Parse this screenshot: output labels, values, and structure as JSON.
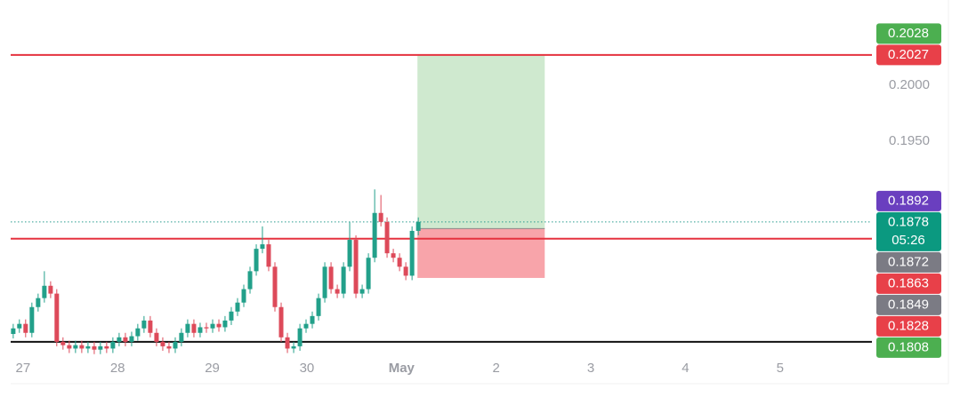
{
  "chart_data": {
    "type": "candlestick",
    "x": [
      -0.103,
      -0.038,
      0.028,
      0.094,
      0.16,
      0.226,
      0.292,
      0.357,
      0.423,
      0.489,
      0.555,
      0.621,
      0.687,
      0.753,
      0.818,
      0.884,
      0.95,
      1.016,
      1.082,
      1.148,
      1.213,
      1.279,
      1.345,
      1.411,
      1.477,
      1.543,
      1.609,
      1.674,
      1.74,
      1.806,
      1.872,
      1.938,
      2.004,
      2.07,
      2.135,
      2.201,
      2.267,
      2.333,
      2.399,
      2.465,
      2.53,
      2.596,
      2.662,
      2.728,
      2.794,
      2.86,
      2.926,
      2.991,
      3.057,
      3.123,
      3.189,
      3.255,
      3.321,
      3.387,
      3.452,
      3.518,
      3.584,
      3.65,
      3.716,
      3.782,
      3.847,
      3.913,
      3.979,
      4.045,
      4.111,
      4.177
    ],
    "open": [
      0.1778,
      0.1783,
      0.1787,
      0.1779,
      0.1802,
      0.181,
      0.1821,
      0.1814,
      0.1771,
      0.1768,
      0.1765,
      0.1768,
      0.1765,
      0.1767,
      0.1764,
      0.1767,
      0.1765,
      0.1771,
      0.1775,
      0.1771,
      0.1776,
      0.1783,
      0.179,
      0.1779,
      0.1771,
      0.1767,
      0.1765,
      0.1771,
      0.1779,
      0.1787,
      0.1779,
      0.1784,
      0.1783,
      0.1787,
      0.1784,
      0.179,
      0.1798,
      0.1806,
      0.1818,
      0.1834,
      0.1854,
      0.1858,
      0.1838,
      0.1802,
      0.1775,
      0.1765,
      0.1767,
      0.1783,
      0.1787,
      0.1794,
      0.181,
      0.1838,
      0.1818,
      0.1814,
      0.1838,
      0.1862,
      0.1814,
      0.1818,
      0.1846,
      0.1886,
      0.1878,
      0.185,
      0.1846,
      0.1838,
      0.183,
      0.187
    ],
    "high": [
      0.1787,
      0.1791,
      0.1791,
      0.1806,
      0.1814,
      0.1834,
      0.1825,
      0.1818,
      0.1775,
      0.1772,
      0.1772,
      0.1772,
      0.1771,
      0.1771,
      0.1771,
      0.1771,
      0.1775,
      0.1779,
      0.1779,
      0.178,
      0.1787,
      0.1794,
      0.1794,
      0.1783,
      0.1775,
      0.1771,
      0.1775,
      0.1783,
      0.1791,
      0.1791,
      0.1788,
      0.1788,
      0.1791,
      0.1791,
      0.1794,
      0.1802,
      0.181,
      0.1822,
      0.1838,
      0.1858,
      0.1874,
      0.1862,
      0.1842,
      0.1806,
      0.1779,
      0.1771,
      0.1787,
      0.1791,
      0.1798,
      0.1814,
      0.1842,
      0.1842,
      0.1822,
      0.1842,
      0.1878,
      0.1866,
      0.1822,
      0.185,
      0.1907,
      0.1902,
      0.1882,
      0.1854,
      0.185,
      0.1842,
      0.1874,
      0.1882
    ],
    "low": [
      0.1774,
      0.1779,
      0.1775,
      0.1775,
      0.1798,
      0.1806,
      0.181,
      0.1767,
      0.1764,
      0.1761,
      0.1761,
      0.1761,
      0.1761,
      0.176,
      0.176,
      0.1761,
      0.1761,
      0.1767,
      0.1767,
      0.1767,
      0.1772,
      0.1779,
      0.1775,
      0.1767,
      0.1763,
      0.1761,
      0.1761,
      0.1767,
      0.1775,
      0.1775,
      0.1775,
      0.1779,
      0.1779,
      0.178,
      0.178,
      0.1786,
      0.1794,
      0.1802,
      0.1814,
      0.183,
      0.185,
      0.1834,
      0.1798,
      0.1771,
      0.1761,
      0.1761,
      0.1763,
      0.1779,
      0.1783,
      0.179,
      0.1806,
      0.1814,
      0.181,
      0.181,
      0.1834,
      0.181,
      0.181,
      0.1814,
      0.1842,
      0.1874,
      0.1846,
      0.1842,
      0.1834,
      0.1826,
      0.1826,
      0.1866
    ],
    "close": [
      0.1783,
      0.1787,
      0.1779,
      0.1802,
      0.181,
      0.1821,
      0.1814,
      0.1771,
      0.1768,
      0.1765,
      0.1768,
      0.1765,
      0.1767,
      0.1764,
      0.1767,
      0.1765,
      0.1771,
      0.1775,
      0.1771,
      0.1776,
      0.1783,
      0.179,
      0.1779,
      0.1771,
      0.1767,
      0.1765,
      0.1771,
      0.1779,
      0.1787,
      0.1779,
      0.1784,
      0.1783,
      0.1787,
      0.1784,
      0.179,
      0.1798,
      0.1806,
      0.1818,
      0.1834,
      0.1854,
      0.1858,
      0.1838,
      0.1802,
      0.1775,
      0.1765,
      0.1767,
      0.1783,
      0.1787,
      0.1794,
      0.181,
      0.1838,
      0.1818,
      0.1814,
      0.1838,
      0.1862,
      0.1814,
      0.1818,
      0.1846,
      0.1886,
      0.1878,
      0.185,
      0.1846,
      0.1838,
      0.183,
      0.187,
      0.1878
    ],
    "up_color": "#22a08a",
    "down_color": "#dd4a5a",
    "xlim": [
      -0.13,
      8.97
    ],
    "ylim": [
      0.1759,
      0.2076
    ],
    "xticks": [
      {
        "value": 0,
        "label": "27"
      },
      {
        "value": 1,
        "label": "28"
      },
      {
        "value": 2,
        "label": "29"
      },
      {
        "value": 3,
        "label": "30"
      },
      {
        "value": 4,
        "label": "May"
      },
      {
        "value": 5,
        "label": "2"
      },
      {
        "value": 6,
        "label": "3"
      },
      {
        "value": 7,
        "label": "4"
      },
      {
        "value": 8,
        "label": "5"
      }
    ],
    "yticks": [
      {
        "value": 0.2,
        "label": "0.2000"
      },
      {
        "value": 0.195,
        "label": "0.1950"
      }
    ],
    "hlines": [
      {
        "value": 0.2027,
        "color": "#e5323f"
      },
      {
        "value": 0.1863,
        "color": "#e5323f"
      },
      {
        "value": 0.1771,
        "color": "#111111"
      }
    ],
    "last_price_line": 0.1878,
    "position": {
      "x": [
        4.168,
        5.513
      ],
      "entry": 0.1872,
      "target": 0.2027,
      "stop": 0.1828,
      "profit_color": "#cfe9cf",
      "loss_color": "#f8a4aa"
    },
    "price_labels": [
      {
        "value": 0.2028,
        "color": "#4caf50"
      },
      {
        "value": 0.2027,
        "color": "#e84049"
      },
      {
        "value": 0.1892,
        "color": "#6a3fbf"
      },
      {
        "value": 0.1878,
        "color": "#0b9980",
        "countdown": "05:26"
      },
      {
        "value": 0.1872,
        "color": "#7b7b84"
      },
      {
        "value": 0.1863,
        "color": "#e84049"
      },
      {
        "value": 0.1849,
        "color": "#7b7b84"
      },
      {
        "value": 0.1828,
        "color": "#e84049"
      },
      {
        "value": 0.1808,
        "color": "#4caf50"
      }
    ]
  }
}
